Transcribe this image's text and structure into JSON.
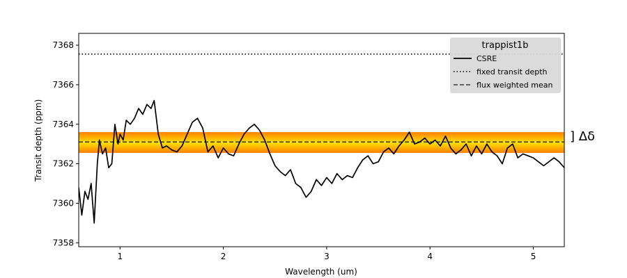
{
  "chart_data": {
    "type": "line",
    "xlabel": "Wavelength (um)",
    "ylabel": "Transit depth (ppm)",
    "xlim": [
      0.6,
      5.3
    ],
    "ylim": [
      7357.8,
      7368.6
    ],
    "x_ticks": [
      1,
      2,
      3,
      4,
      5
    ],
    "y_ticks": [
      7358,
      7360,
      7362,
      7364,
      7366,
      7368
    ],
    "legend": {
      "title": "trappist1b",
      "position": "upper right",
      "entries": [
        "CSRE",
        "fixed transit depth",
        "flux weighted mean"
      ]
    },
    "fixed_transit_depth": 7367.55,
    "flux_weighted_mean": 7363.1,
    "band": {
      "low": 7362.55,
      "high": 7363.6
    },
    "annotation": "] Δδ",
    "colors": {
      "csre": "#000000",
      "fixed": "#000000",
      "mean": "#3a3a3a",
      "band_outer": "#ff7f00",
      "band_mid": "#ffb000",
      "band_inner": "#ffe000",
      "legend_bg": "#d9d9d9"
    },
    "series": [
      {
        "name": "CSRE",
        "x": [
          0.6,
          0.63,
          0.66,
          0.69,
          0.72,
          0.75,
          0.78,
          0.8,
          0.83,
          0.86,
          0.89,
          0.92,
          0.95,
          0.98,
          1.0,
          1.03,
          1.06,
          1.1,
          1.14,
          1.18,
          1.22,
          1.26,
          1.3,
          1.33,
          1.37,
          1.41,
          1.45,
          1.5,
          1.55,
          1.6,
          1.65,
          1.7,
          1.75,
          1.8,
          1.85,
          1.9,
          1.95,
          2.0,
          2.05,
          2.1,
          2.15,
          2.2,
          2.25,
          2.3,
          2.35,
          2.4,
          2.45,
          2.5,
          2.55,
          2.6,
          2.65,
          2.7,
          2.75,
          2.8,
          2.85,
          2.9,
          2.95,
          3.0,
          3.05,
          3.1,
          3.15,
          3.2,
          3.25,
          3.3,
          3.35,
          3.4,
          3.45,
          3.5,
          3.55,
          3.6,
          3.65,
          3.7,
          3.75,
          3.8,
          3.85,
          3.9,
          3.95,
          4.0,
          4.05,
          4.1,
          4.15,
          4.2,
          4.25,
          4.3,
          4.35,
          4.4,
          4.45,
          4.5,
          4.55,
          4.6,
          4.65,
          4.7,
          4.75,
          4.8,
          4.85,
          4.9,
          4.95,
          5.0,
          5.05,
          5.1,
          5.15,
          5.2,
          5.25,
          5.3
        ],
        "values": [
          7360.8,
          7359.4,
          7360.6,
          7360.2,
          7361.0,
          7359.0,
          7362.0,
          7363.2,
          7362.5,
          7362.8,
          7361.8,
          7362.0,
          7364.0,
          7363.0,
          7363.5,
          7363.2,
          7364.2,
          7364.0,
          7364.3,
          7364.8,
          7364.5,
          7365.0,
          7364.8,
          7365.2,
          7363.5,
          7362.8,
          7362.9,
          7362.7,
          7362.6,
          7362.9,
          7363.5,
          7364.1,
          7364.3,
          7363.8,
          7362.6,
          7362.9,
          7362.3,
          7362.8,
          7362.5,
          7362.4,
          7363.0,
          7363.5,
          7363.8,
          7364.0,
          7363.7,
          7363.2,
          7362.5,
          7361.9,
          7361.6,
          7361.4,
          7361.7,
          7361.0,
          7360.8,
          7360.3,
          7360.6,
          7361.2,
          7360.9,
          7361.3,
          7361.0,
          7361.5,
          7361.2,
          7361.4,
          7361.3,
          7361.8,
          7362.2,
          7362.4,
          7362.0,
          7362.1,
          7362.6,
          7362.8,
          7362.5,
          7362.9,
          7363.2,
          7363.6,
          7363.0,
          7363.1,
          7363.3,
          7363.0,
          7363.2,
          7362.9,
          7363.4,
          7362.8,
          7362.5,
          7362.7,
          7363.0,
          7362.4,
          7362.9,
          7362.5,
          7363.0,
          7362.6,
          7362.4,
          7362.0,
          7362.8,
          7363.0,
          7362.3,
          7362.5,
          7362.4,
          7362.3,
          7362.1,
          7361.9,
          7362.1,
          7362.3,
          7362.1,
          7361.8
        ]
      }
    ]
  }
}
